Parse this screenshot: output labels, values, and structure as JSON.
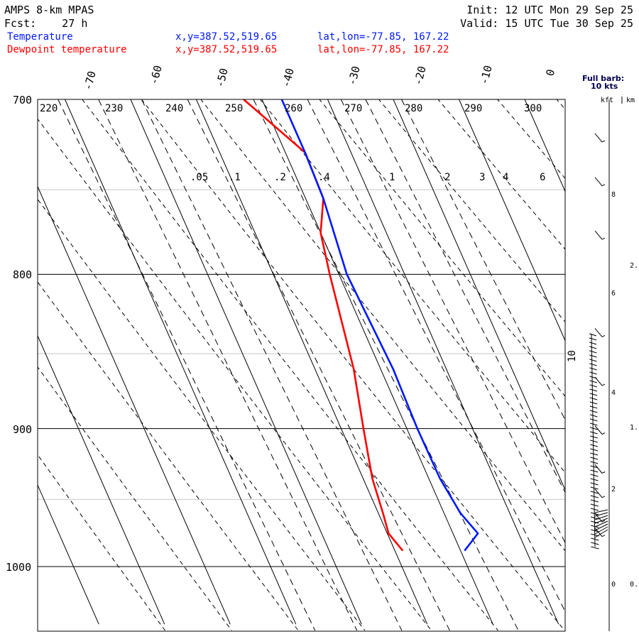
{
  "header": {
    "model": "AMPS 8-km MPAS",
    "fcst": "Fcst:    27 h",
    "init": "Init: 12 UTC Mon 29 Sep 25",
    "valid": "Valid: 15 UTC Tue 30 Sep 25"
  },
  "legend": {
    "temperature": {
      "label": "Temperature",
      "xy": "x,y=387.52,519.65",
      "latlon": "lat,lon=-77.85, 167.22",
      "color": "#0018ff"
    },
    "dewpoint": {
      "label": "Dewpoint temperature",
      "xy": "x,y=387.52,519.65",
      "latlon": "lat,lon=-77.85, 167.22",
      "color": "#ff0000"
    }
  },
  "barb_panel": {
    "title_line1": "Full barb:",
    "title_line2": "10 kts",
    "kft_label": "kft",
    "km_label": "km",
    "kft_ticks": [
      "8",
      "6",
      "4",
      "2",
      "0"
    ],
    "km_ticks": [
      "2.",
      "1.",
      "0."
    ]
  },
  "chart_data": {
    "type": "skew-t",
    "pressure_range_hpa": [
      700,
      1040
    ],
    "pressure_labels": [
      "700",
      "800",
      "900",
      "1000"
    ],
    "temperature_labels_c": [
      "-70",
      "-60",
      "-50",
      "-40",
      "-30",
      "-20",
      "-10",
      "0"
    ],
    "temperature_isotherms_c": [
      -70,
      -60,
      -50,
      -40,
      -30,
      -20,
      -10,
      0
    ],
    "dry_adiabat_labels_k": [
      "220",
      "230",
      "240",
      "250",
      "260",
      "270",
      "280",
      "290",
      "300"
    ],
    "mixing_ratio_labels_gkg": [
      ".05",
      ".1",
      ".2",
      ".4",
      "1",
      "2",
      "3",
      "4",
      "6"
    ],
    "wind_speed_label": "10",
    "temperature_profile": {
      "name": "Temperature",
      "pressure_hpa": [
        700,
        729,
        755,
        800,
        860,
        900,
        935,
        960,
        975,
        988
      ],
      "temp_c": [
        -17.0,
        -17.0,
        -17.3,
        -18.8,
        -18.1,
        -18.4,
        -18.3,
        -17.5,
        -16.2,
        -19.4
      ]
    },
    "dewpoint_profile": {
      "name": "Dewpoint temperature",
      "pressure_hpa": [
        700,
        729,
        755,
        775,
        800,
        860,
        900,
        935,
        960,
        975,
        988
      ],
      "dewpoint_c": [
        -22.8,
        -17.0,
        -17.3,
        -20.0,
        -21.4,
        -24.1,
        -26.6,
        -28.6,
        -29.3,
        -29.8,
        -28.8
      ]
    },
    "wind_barb_heights_kft": [
      9.3,
      8.4,
      7.3,
      5.3,
      4.3,
      3.3,
      2.5,
      2.0,
      1.5,
      1.2
    ]
  }
}
